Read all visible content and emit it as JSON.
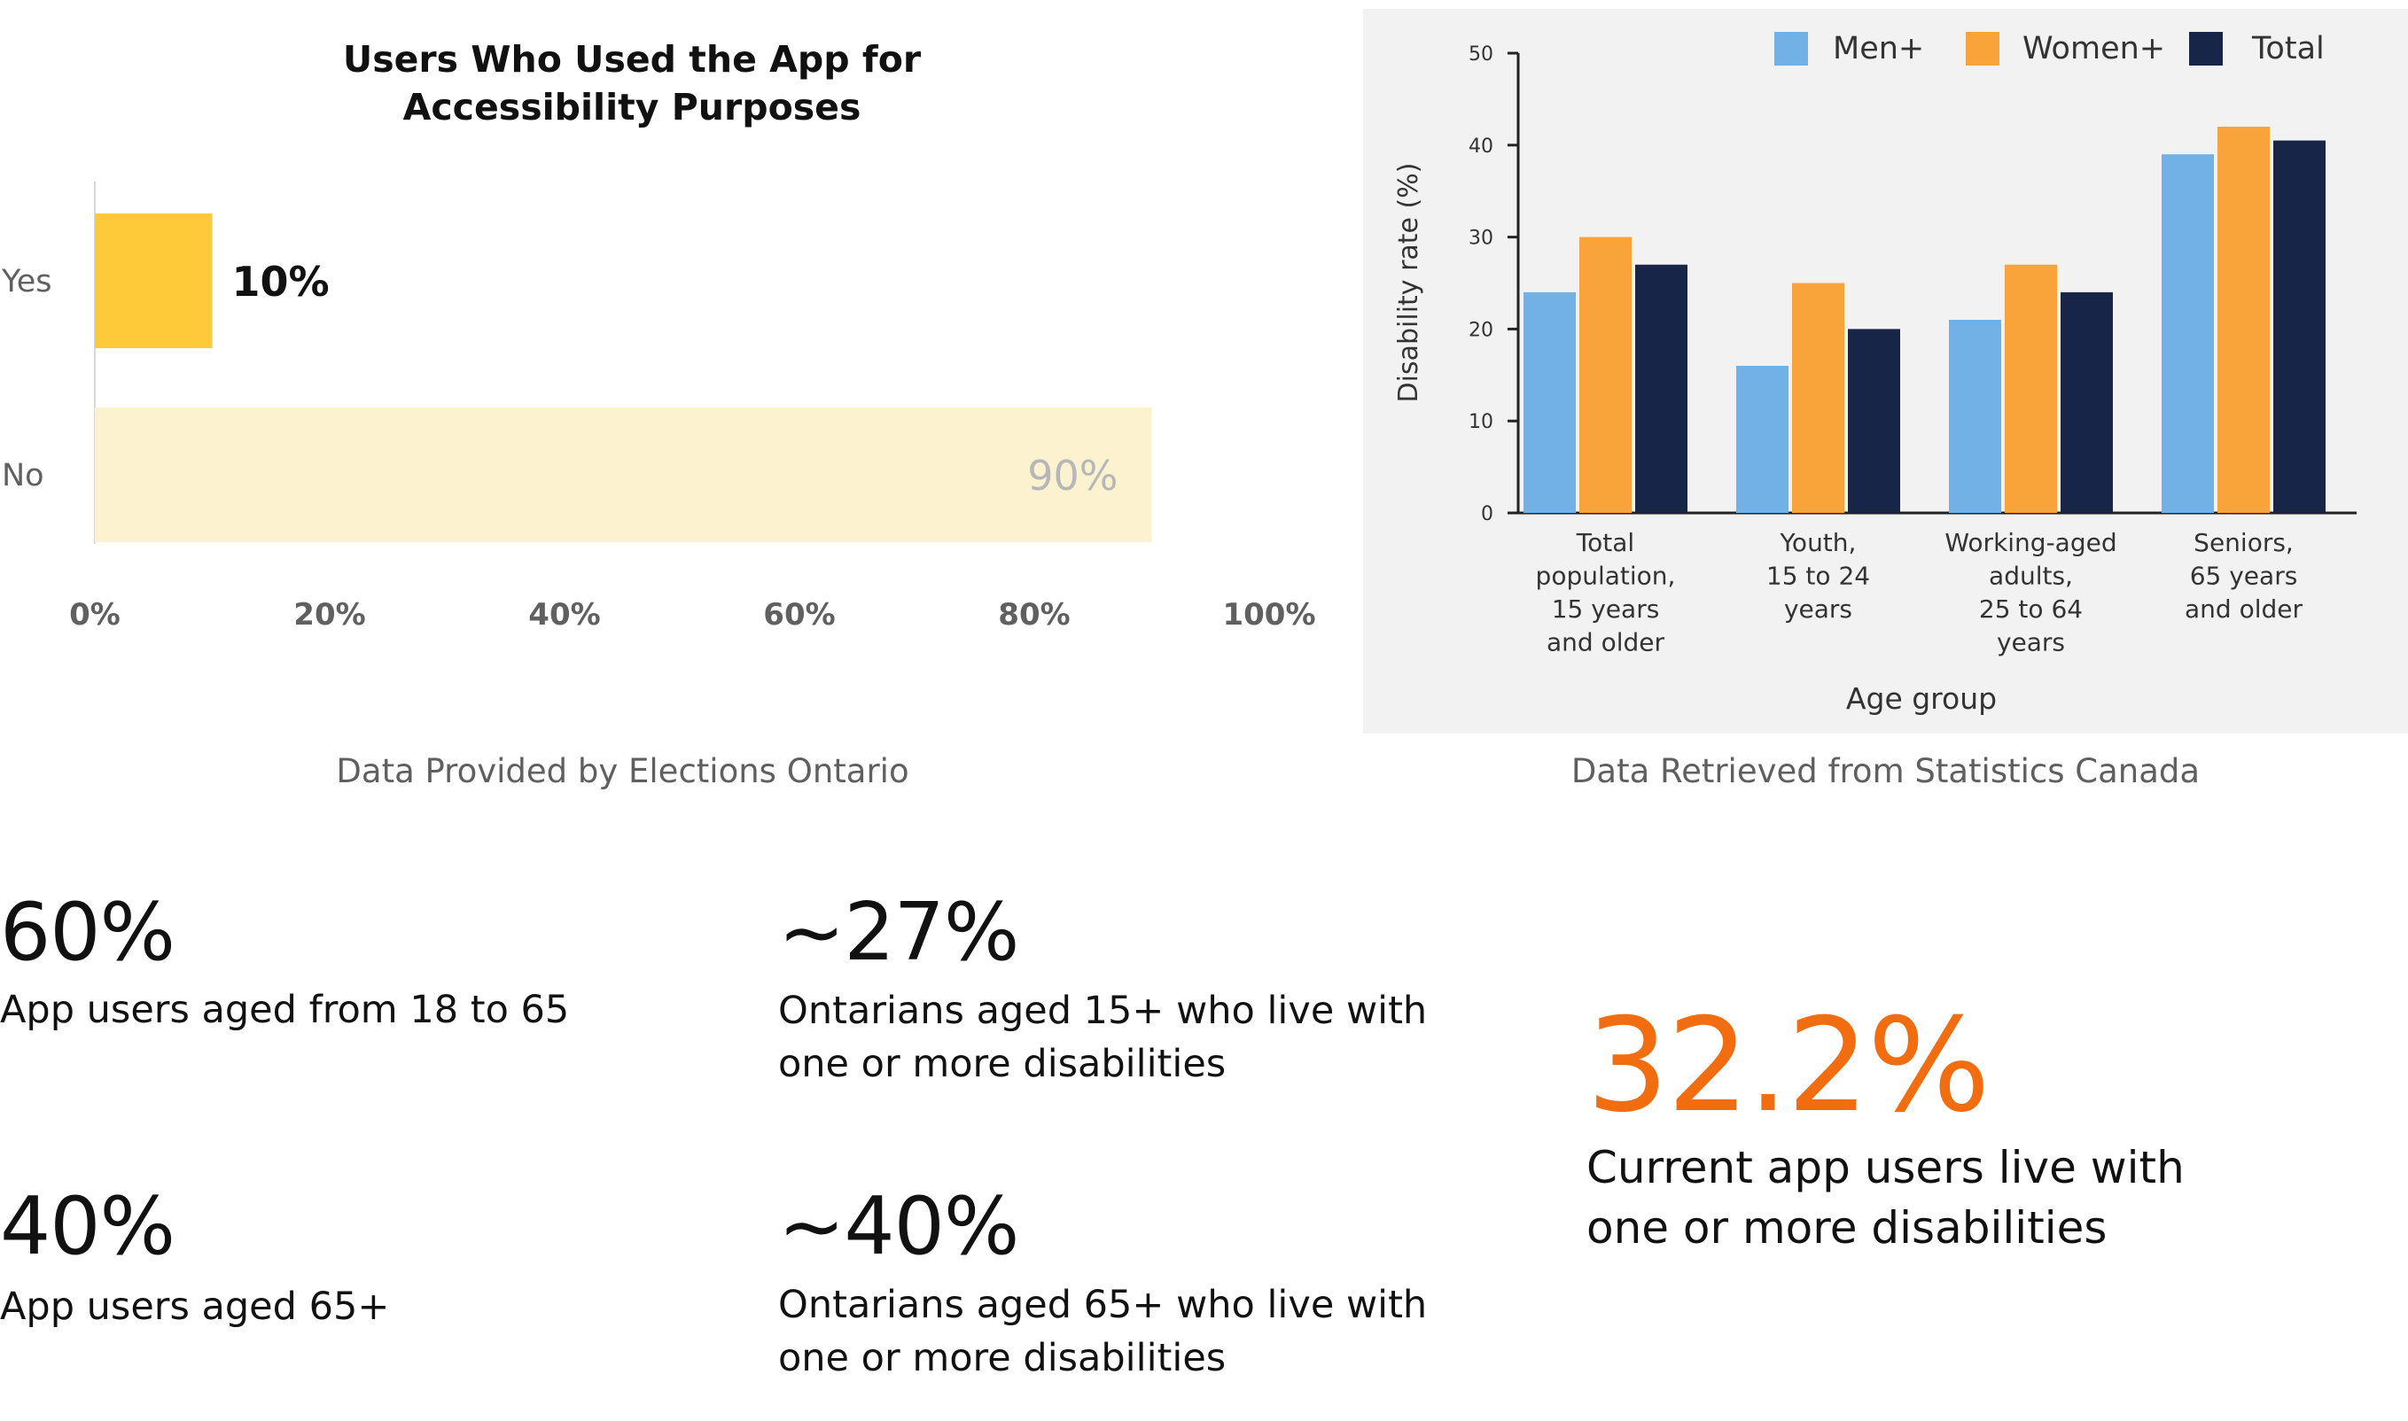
{
  "chart_data": [
    {
      "type": "bar",
      "orientation": "horizontal",
      "title_lines": [
        "Users Who Used the App for",
        "Accessibility Purposes"
      ],
      "categories": [
        "Yes",
        "No"
      ],
      "values": [
        10,
        90
      ],
      "value_labels": [
        "10%",
        "90%"
      ],
      "xlim": [
        0,
        100
      ],
      "xticks": [
        0,
        20,
        40,
        60,
        80,
        100
      ],
      "xtick_labels": [
        "0%",
        "20%",
        "40%",
        "60%",
        "80%",
        "100%"
      ],
      "grid": false,
      "colors": {
        "yes_bar": "#ffca3a",
        "no_bar": "#fdf2cf",
        "yes_label": "#111111",
        "no_label": "#b7b7b7",
        "axis_text": "#606060",
        "axis_line": "#d8d8d8",
        "title": "#111111"
      }
    },
    {
      "type": "bar",
      "orientation": "vertical",
      "categories": [
        [
          "Total",
          "population,",
          "15 years",
          "and older"
        ],
        [
          "Youth,",
          "15 to 24",
          "years"
        ],
        [
          "Working-aged",
          "adults,",
          "25 to 64",
          "years"
        ],
        [
          "Seniors,",
          "65 years",
          "and older"
        ]
      ],
      "series": [
        {
          "name": "Men+",
          "values": [
            24,
            16,
            21,
            39
          ],
          "color": "#72b1e6"
        },
        {
          "name": "Women+",
          "values": [
            30,
            25,
            27,
            42
          ],
          "color": "#f8a43a"
        },
        {
          "name": "Total",
          "values": [
            27,
            20,
            24,
            40.5
          ],
          "color": "#172648"
        }
      ],
      "ylim": [
        0,
        50
      ],
      "yticks": [
        0,
        10,
        20,
        30,
        40,
        50
      ],
      "ylabel": "Disability rate (%)",
      "xlabel": "Age group",
      "legend_position": "top-right",
      "grid": false,
      "colors": {
        "background": "#f2f2f2",
        "axis": "#222222",
        "text": "#333333"
      }
    }
  ],
  "captions": {
    "left": "Data Provided by Elections Ontario",
    "right": "Data Retrieved from Statistics Canada"
  },
  "stats": {
    "users_18_65_value": "60%",
    "users_18_65_label": "App users aged from 18 to 65",
    "users_65_value": "40%",
    "users_65_label": "App users aged 65+",
    "ontarians_15_value": "~27%",
    "ontarians_15_label_1": "Ontarians aged 15+ who live with",
    "ontarians_15_label_2": "one or more disabilities",
    "ontarians_65_value": "~40%",
    "ontarians_65_label_1": "Ontarians aged 65+ who live with",
    "ontarians_65_label_2": "one or more disabilities",
    "current_value": "32.2%",
    "current_label_1": "Current app users live with",
    "current_label_2": "one or more disabilities"
  },
  "colors": {
    "highlight": "#f26d0f",
    "text": "#111111",
    "caption": "#5f5f5f"
  }
}
